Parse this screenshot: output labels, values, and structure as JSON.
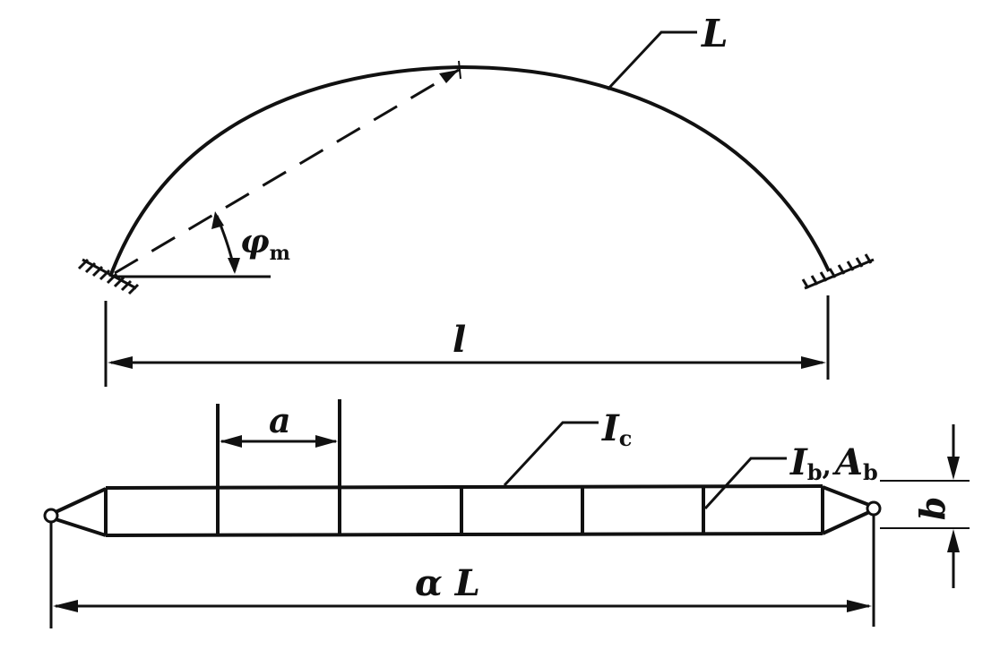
{
  "labels": {
    "arch_length": "L",
    "span": "l",
    "angle_symbol": "φ",
    "angle_sub": "m",
    "panel_spacing": "a",
    "chord_symbol": "I",
    "chord_sub": "c",
    "batten_symbol_I": "I",
    "batten_sub_I": "b",
    "batten_comma": ",",
    "batten_symbol_A": "A",
    "batten_sub_A": "b",
    "column_width": "b",
    "total_length": "α L"
  },
  "colors": {
    "ink": "#111111",
    "background": "#ffffff"
  }
}
